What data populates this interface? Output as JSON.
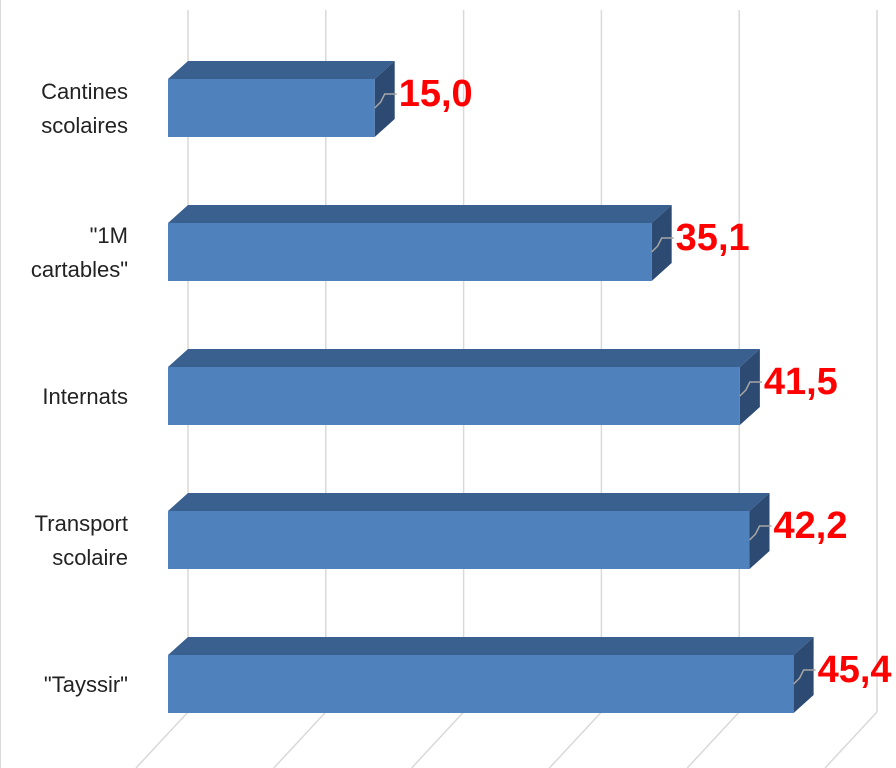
{
  "chart_data": {
    "type": "bar",
    "orientation": "horizontal",
    "style": "3d",
    "categories": [
      [
        "Cantines",
        "scolaires"
      ],
      [
        "\"1M",
        "cartables\""
      ],
      [
        "Internats"
      ],
      [
        "Transport",
        "scolaire"
      ],
      [
        "\"Tayssir\""
      ]
    ],
    "values": [
      15.0,
      35.1,
      41.5,
      42.2,
      45.4
    ],
    "data_labels": [
      "15,0",
      "35,1",
      "41,5",
      "42,2",
      "45,4"
    ],
    "title": "",
    "xlabel": "",
    "ylabel": "",
    "xlim": [
      0,
      50
    ],
    "grid": true,
    "legend": "none",
    "colors": {
      "bar_front": "#4f81bd",
      "bar_top": "#3a6090",
      "bar_side": "#2c4a72",
      "data_label": "#ff0000",
      "grid": "#d9d9d9",
      "leader_line": "#a6a6a6"
    }
  }
}
